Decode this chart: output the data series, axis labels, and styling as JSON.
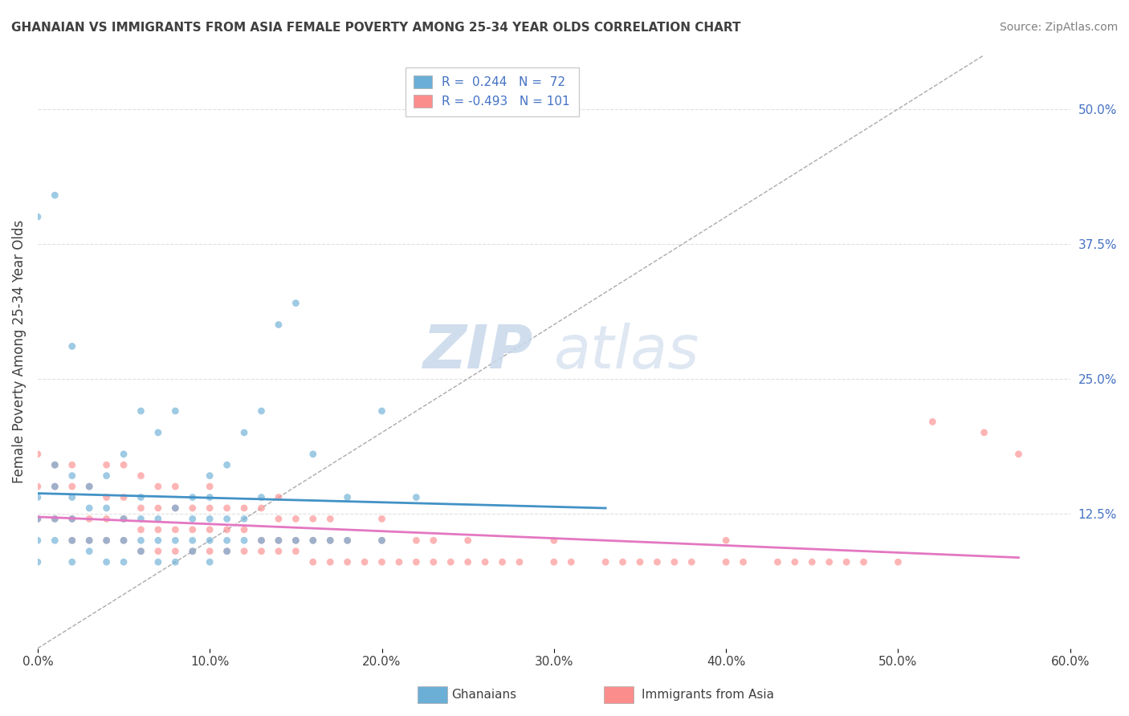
{
  "title": "GHANAIAN VS IMMIGRANTS FROM ASIA FEMALE POVERTY AMONG 25-34 YEAR OLDS CORRELATION CHART",
  "source": "Source: ZipAtlas.com",
  "ylabel": "Female Poverty Among 25-34 Year Olds",
  "xlim": [
    0.0,
    0.6
  ],
  "ylim": [
    0.0,
    0.55
  ],
  "xtick_labels": [
    "0.0%",
    "10.0%",
    "20.0%",
    "30.0%",
    "40.0%",
    "50.0%",
    "60.0%"
  ],
  "xtick_vals": [
    0.0,
    0.1,
    0.2,
    0.3,
    0.4,
    0.5,
    0.6
  ],
  "ytick_labels": [
    "12.5%",
    "25.0%",
    "37.5%",
    "50.0%"
  ],
  "ytick_vals_right": [
    0.125,
    0.25,
    0.375,
    0.5
  ],
  "R1": 0.244,
  "N1": 72,
  "R2": -0.493,
  "N2": 101,
  "color_ghanaian": "#6baed6",
  "color_asia": "#fc8d8d",
  "color_line1": "#4292c6",
  "color_line2": "#e377c2",
  "title_color": "#404040",
  "source_color": "#808080",
  "watermark_zip_color": "#c8d8ea",
  "watermark_atlas_color": "#c8d8ea",
  "background_color": "#ffffff",
  "grid_color": "#e0e0e0",
  "scatter_alpha": 0.65,
  "scatter_size": 40,
  "ghanaian_x": [
    0.0,
    0.0,
    0.0,
    0.0,
    0.0,
    0.01,
    0.01,
    0.01,
    0.01,
    0.01,
    0.02,
    0.02,
    0.02,
    0.02,
    0.02,
    0.02,
    0.03,
    0.03,
    0.03,
    0.03,
    0.04,
    0.04,
    0.04,
    0.04,
    0.05,
    0.05,
    0.05,
    0.05,
    0.06,
    0.06,
    0.06,
    0.06,
    0.06,
    0.07,
    0.07,
    0.07,
    0.07,
    0.08,
    0.08,
    0.08,
    0.08,
    0.09,
    0.09,
    0.09,
    0.09,
    0.1,
    0.1,
    0.1,
    0.1,
    0.1,
    0.11,
    0.11,
    0.11,
    0.11,
    0.12,
    0.12,
    0.12,
    0.13,
    0.13,
    0.13,
    0.14,
    0.14,
    0.15,
    0.15,
    0.16,
    0.16,
    0.17,
    0.18,
    0.18,
    0.2,
    0.2,
    0.22
  ],
  "ghanaian_y": [
    0.08,
    0.1,
    0.12,
    0.14,
    0.4,
    0.1,
    0.12,
    0.15,
    0.17,
    0.42,
    0.08,
    0.1,
    0.12,
    0.14,
    0.16,
    0.28,
    0.09,
    0.1,
    0.13,
    0.15,
    0.08,
    0.1,
    0.13,
    0.16,
    0.08,
    0.1,
    0.12,
    0.18,
    0.09,
    0.1,
    0.12,
    0.14,
    0.22,
    0.08,
    0.1,
    0.12,
    0.2,
    0.08,
    0.1,
    0.13,
    0.22,
    0.09,
    0.1,
    0.12,
    0.14,
    0.08,
    0.1,
    0.12,
    0.14,
    0.16,
    0.09,
    0.1,
    0.12,
    0.17,
    0.1,
    0.12,
    0.2,
    0.1,
    0.14,
    0.22,
    0.1,
    0.3,
    0.1,
    0.32,
    0.1,
    0.18,
    0.1,
    0.1,
    0.14,
    0.1,
    0.22,
    0.14
  ],
  "asia_x": [
    0.0,
    0.0,
    0.0,
    0.01,
    0.01,
    0.01,
    0.02,
    0.02,
    0.02,
    0.02,
    0.03,
    0.03,
    0.03,
    0.04,
    0.04,
    0.04,
    0.04,
    0.05,
    0.05,
    0.05,
    0.05,
    0.06,
    0.06,
    0.06,
    0.06,
    0.07,
    0.07,
    0.07,
    0.07,
    0.08,
    0.08,
    0.08,
    0.08,
    0.09,
    0.09,
    0.09,
    0.1,
    0.1,
    0.1,
    0.1,
    0.11,
    0.11,
    0.11,
    0.12,
    0.12,
    0.12,
    0.13,
    0.13,
    0.13,
    0.14,
    0.14,
    0.14,
    0.14,
    0.15,
    0.15,
    0.15,
    0.16,
    0.16,
    0.16,
    0.17,
    0.17,
    0.17,
    0.18,
    0.18,
    0.19,
    0.2,
    0.2,
    0.2,
    0.21,
    0.22,
    0.22,
    0.23,
    0.23,
    0.24,
    0.25,
    0.25,
    0.26,
    0.27,
    0.28,
    0.3,
    0.3,
    0.31,
    0.33,
    0.34,
    0.35,
    0.36,
    0.37,
    0.38,
    0.4,
    0.4,
    0.41,
    0.43,
    0.44,
    0.45,
    0.46,
    0.47,
    0.48,
    0.5,
    0.52,
    0.55,
    0.57
  ],
  "asia_y": [
    0.12,
    0.15,
    0.18,
    0.12,
    0.15,
    0.17,
    0.1,
    0.12,
    0.15,
    0.17,
    0.1,
    0.12,
    0.15,
    0.1,
    0.12,
    0.14,
    0.17,
    0.1,
    0.12,
    0.14,
    0.17,
    0.09,
    0.11,
    0.13,
    0.16,
    0.09,
    0.11,
    0.13,
    0.15,
    0.09,
    0.11,
    0.13,
    0.15,
    0.09,
    0.11,
    0.13,
    0.09,
    0.11,
    0.13,
    0.15,
    0.09,
    0.11,
    0.13,
    0.09,
    0.11,
    0.13,
    0.09,
    0.1,
    0.13,
    0.09,
    0.1,
    0.12,
    0.14,
    0.09,
    0.1,
    0.12,
    0.08,
    0.1,
    0.12,
    0.08,
    0.1,
    0.12,
    0.08,
    0.1,
    0.08,
    0.08,
    0.1,
    0.12,
    0.08,
    0.08,
    0.1,
    0.08,
    0.1,
    0.08,
    0.08,
    0.1,
    0.08,
    0.08,
    0.08,
    0.08,
    0.1,
    0.08,
    0.08,
    0.08,
    0.08,
    0.08,
    0.08,
    0.08,
    0.08,
    0.1,
    0.08,
    0.08,
    0.08,
    0.08,
    0.08,
    0.08,
    0.08,
    0.08,
    0.21,
    0.2,
    0.18
  ]
}
